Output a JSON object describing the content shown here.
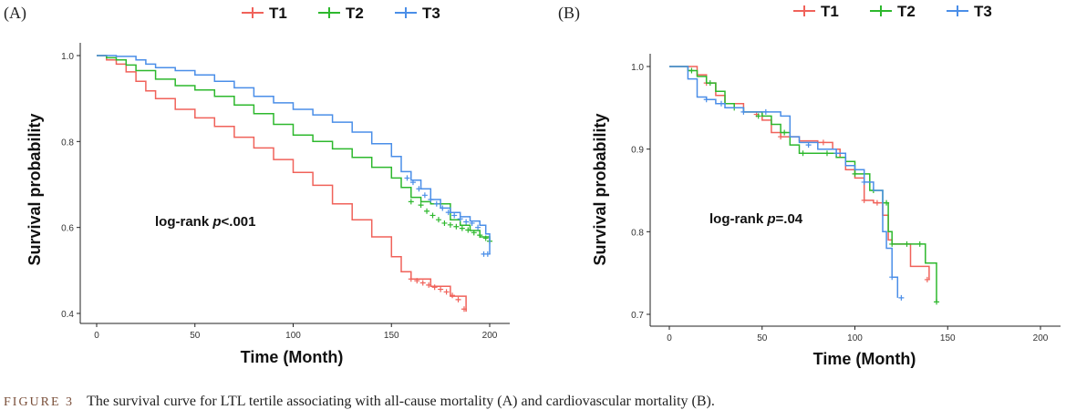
{
  "caption": {
    "label": "FIGURE 3",
    "text": "The survival curve for LTL tertile associating with all-cause mortality (A) and cardiovascular mortality (B)."
  },
  "chart_data": [
    {
      "type": "line",
      "panel_label": "(A)",
      "title": "",
      "xlabel": "Time (Month)",
      "ylabel": "Survival probability",
      "xlim": [
        0,
        200
      ],
      "ylim": [
        0.4,
        1.0
      ],
      "x_ticks": [
        0,
        50,
        100,
        150,
        200
      ],
      "y_ticks": [
        0.4,
        0.6,
        0.8,
        1.0
      ],
      "x_tick_labels": [
        "0",
        "50",
        "100",
        "150",
        "200"
      ],
      "y_tick_labels": [
        "0.4",
        "0.6",
        "0.8",
        "1.0"
      ],
      "annotation": {
        "prefix": "log-rank ",
        "italic": "p",
        "suffix": "<.001"
      },
      "legend_position": "top",
      "grid": false,
      "series": [
        {
          "name": "T1",
          "color": "#f0625a",
          "points": [
            [
              0,
              1.0
            ],
            [
              5,
              0.99
            ],
            [
              10,
              0.98
            ],
            [
              15,
              0.962
            ],
            [
              20,
              0.94
            ],
            [
              25,
              0.918
            ],
            [
              30,
              0.9
            ],
            [
              40,
              0.875
            ],
            [
              50,
              0.855
            ],
            [
              60,
              0.835
            ],
            [
              70,
              0.81
            ],
            [
              80,
              0.785
            ],
            [
              90,
              0.758
            ],
            [
              100,
              0.728
            ],
            [
              110,
              0.698
            ],
            [
              120,
              0.655
            ],
            [
              130,
              0.618
            ],
            [
              140,
              0.578
            ],
            [
              150,
              0.532
            ],
            [
              155,
              0.497
            ],
            [
              160,
              0.48
            ],
            [
              170,
              0.463
            ],
            [
              180,
              0.44
            ],
            [
              188,
              0.404
            ]
          ],
          "censored": [
            [
              160,
              0.48
            ],
            [
              163,
              0.476
            ],
            [
              166,
              0.471
            ],
            [
              169,
              0.466
            ],
            [
              172,
              0.461
            ],
            [
              175,
              0.456
            ],
            [
              178,
              0.45
            ],
            [
              181,
              0.442
            ],
            [
              184,
              0.432
            ],
            [
              187,
              0.41
            ]
          ]
        },
        {
          "name": "T2",
          "color": "#2db82d",
          "points": [
            [
              0,
              1.0
            ],
            [
              5,
              0.995
            ],
            [
              10,
              0.99
            ],
            [
              15,
              0.978
            ],
            [
              20,
              0.965
            ],
            [
              30,
              0.945
            ],
            [
              40,
              0.93
            ],
            [
              50,
              0.92
            ],
            [
              60,
              0.905
            ],
            [
              70,
              0.885
            ],
            [
              80,
              0.865
            ],
            [
              90,
              0.84
            ],
            [
              100,
              0.815
            ],
            [
              110,
              0.8
            ],
            [
              120,
              0.783
            ],
            [
              130,
              0.763
            ],
            [
              140,
              0.74
            ],
            [
              150,
              0.715
            ],
            [
              155,
              0.693
            ],
            [
              160,
              0.67
            ],
            [
              165,
              0.66
            ],
            [
              170,
              0.655
            ],
            [
              180,
              0.618
            ],
            [
              185,
              0.605
            ],
            [
              190,
              0.593
            ],
            [
              195,
              0.578
            ],
            [
              200,
              0.568
            ]
          ],
          "censored": [
            [
              160,
              0.66
            ],
            [
              165,
              0.652
            ],
            [
              168,
              0.638
            ],
            [
              171,
              0.628
            ],
            [
              174,
              0.618
            ],
            [
              177,
              0.61
            ],
            [
              180,
              0.606
            ],
            [
              183,
              0.602
            ],
            [
              186,
              0.598
            ],
            [
              189,
              0.594
            ],
            [
              192,
              0.588
            ],
            [
              195,
              0.582
            ],
            [
              198,
              0.575
            ],
            [
              200,
              0.568
            ]
          ]
        },
        {
          "name": "T3",
          "color": "#4a8ee8",
          "points": [
            [
              0,
              1.0
            ],
            [
              10,
              0.998
            ],
            [
              20,
              0.99
            ],
            [
              25,
              0.98
            ],
            [
              30,
              0.972
            ],
            [
              40,
              0.965
            ],
            [
              50,
              0.955
            ],
            [
              60,
              0.94
            ],
            [
              70,
              0.925
            ],
            [
              80,
              0.905
            ],
            [
              90,
              0.89
            ],
            [
              100,
              0.875
            ],
            [
              110,
              0.862
            ],
            [
              120,
              0.845
            ],
            [
              130,
              0.822
            ],
            [
              140,
              0.795
            ],
            [
              150,
              0.765
            ],
            [
              155,
              0.73
            ],
            [
              160,
              0.71
            ],
            [
              165,
              0.69
            ],
            [
              170,
              0.665
            ],
            [
              175,
              0.645
            ],
            [
              180,
              0.635
            ],
            [
              185,
              0.625
            ],
            [
              190,
              0.615
            ],
            [
              195,
              0.605
            ],
            [
              198,
              0.585
            ],
            [
              200,
              0.538
            ]
          ],
          "censored": [
            [
              158,
              0.715
            ],
            [
              161,
              0.705
            ],
            [
              164,
              0.69
            ],
            [
              167,
              0.675
            ],
            [
              170,
              0.665
            ],
            [
              173,
              0.655
            ],
            [
              176,
              0.645
            ],
            [
              179,
              0.635
            ],
            [
              182,
              0.628
            ],
            [
              185,
              0.62
            ],
            [
              188,
              0.613
            ],
            [
              191,
              0.61
            ],
            [
              194,
              0.6
            ],
            [
              197,
              0.538
            ],
            [
              199,
              0.538
            ]
          ]
        }
      ]
    },
    {
      "type": "line",
      "panel_label": "(B)",
      "title": "",
      "xlabel": "Time (Month)",
      "ylabel": "Survival probability",
      "xlim": [
        0,
        200
      ],
      "ylim": [
        0.7,
        1.0
      ],
      "x_ticks": [
        0,
        50,
        100,
        150,
        200
      ],
      "y_ticks": [
        0.7,
        0.8,
        0.9,
        1.0
      ],
      "x_tick_labels": [
        "0",
        "50",
        "100",
        "150",
        "200"
      ],
      "y_tick_labels": [
        "0.7",
        "0.8",
        "0.9",
        "1.0"
      ],
      "annotation": {
        "prefix": "log-rank ",
        "italic": "p",
        "suffix": "=.04"
      },
      "legend_position": "top",
      "grid": false,
      "series": [
        {
          "name": "T1",
          "color": "#f0625a",
          "points": [
            [
              0,
              1.0
            ],
            [
              10,
              1.0
            ],
            [
              15,
              0.99
            ],
            [
              20,
              0.98
            ],
            [
              25,
              0.965
            ],
            [
              30,
              0.955
            ],
            [
              40,
              0.945
            ],
            [
              50,
              0.935
            ],
            [
              55,
              0.92
            ],
            [
              60,
              0.915
            ],
            [
              70,
              0.91
            ],
            [
              80,
              0.908
            ],
            [
              88,
              0.9
            ],
            [
              92,
              0.89
            ],
            [
              95,
              0.875
            ],
            [
              100,
              0.865
            ],
            [
              105,
              0.838
            ],
            [
              110,
              0.835
            ],
            [
              115,
              0.82
            ],
            [
              118,
              0.79
            ],
            [
              120,
              0.785
            ],
            [
              130,
              0.758
            ],
            [
              140,
              0.742
            ]
          ],
          "censored": [
            [
              20,
              0.98
            ],
            [
              47,
              0.942
            ],
            [
              60,
              0.915
            ],
            [
              83,
              0.908
            ],
            [
              105,
              0.838
            ],
            [
              112,
              0.835
            ],
            [
              139,
              0.742
            ]
          ]
        },
        {
          "name": "T2",
          "color": "#2db82d",
          "points": [
            [
              0,
              1.0
            ],
            [
              10,
              0.995
            ],
            [
              15,
              0.988
            ],
            [
              20,
              0.98
            ],
            [
              25,
              0.97
            ],
            [
              30,
              0.955
            ],
            [
              35,
              0.95
            ],
            [
              40,
              0.945
            ],
            [
              50,
              0.94
            ],
            [
              55,
              0.93
            ],
            [
              60,
              0.92
            ],
            [
              65,
              0.905
            ],
            [
              70,
              0.895
            ],
            [
              80,
              0.895
            ],
            [
              90,
              0.89
            ],
            [
              95,
              0.885
            ],
            [
              100,
              0.87
            ],
            [
              108,
              0.85
            ],
            [
              115,
              0.835
            ],
            [
              118,
              0.8
            ],
            [
              120,
              0.785
            ],
            [
              135,
              0.785
            ],
            [
              138,
              0.762
            ],
            [
              143,
              0.762
            ],
            [
              144,
              0.715
            ]
          ],
          "censored": [
            [
              12,
              0.995
            ],
            [
              22,
              0.98
            ],
            [
              35,
              0.95
            ],
            [
              48,
              0.94
            ],
            [
              62,
              0.92
            ],
            [
              72,
              0.895
            ],
            [
              85,
              0.895
            ],
            [
              100,
              0.87
            ],
            [
              110,
              0.85
            ],
            [
              117,
              0.835
            ],
            [
              120,
              0.785
            ],
            [
              128,
              0.785
            ],
            [
              135,
              0.785
            ],
            [
              144,
              0.715
            ]
          ]
        },
        {
          "name": "T3",
          "color": "#4a8ee8",
          "points": [
            [
              0,
              1.0
            ],
            [
              5,
              1.0
            ],
            [
              10,
              0.985
            ],
            [
              15,
              0.963
            ],
            [
              20,
              0.96
            ],
            [
              25,
              0.955
            ],
            [
              30,
              0.95
            ],
            [
              40,
              0.945
            ],
            [
              50,
              0.945
            ],
            [
              60,
              0.94
            ],
            [
              65,
              0.915
            ],
            [
              70,
              0.908
            ],
            [
              80,
              0.9
            ],
            [
              90,
              0.895
            ],
            [
              95,
              0.88
            ],
            [
              100,
              0.875
            ],
            [
              105,
              0.86
            ],
            [
              110,
              0.85
            ],
            [
              115,
              0.8
            ],
            [
              117,
              0.78
            ],
            [
              120,
              0.745
            ],
            [
              123,
              0.72
            ]
          ],
          "censored": [
            [
              20,
              0.96
            ],
            [
              28,
              0.955
            ],
            [
              40,
              0.945
            ],
            [
              52,
              0.945
            ],
            [
              75,
              0.905
            ],
            [
              90,
              0.895
            ],
            [
              105,
              0.86
            ],
            [
              120,
              0.745
            ],
            [
              125,
              0.72
            ]
          ]
        }
      ]
    }
  ]
}
